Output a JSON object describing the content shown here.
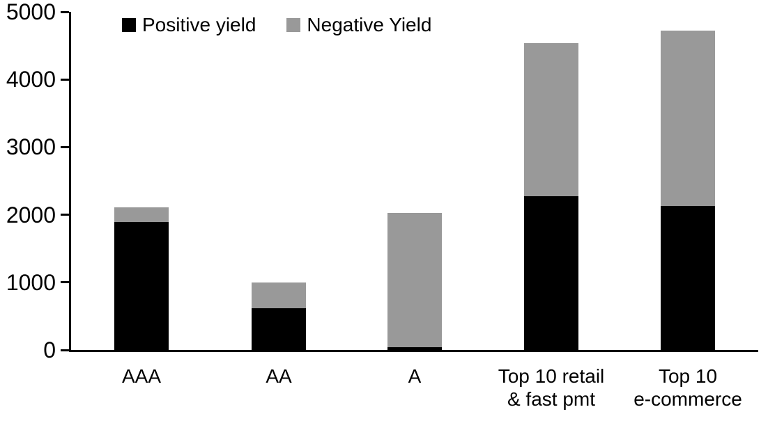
{
  "chart_data": {
    "type": "bar",
    "stacked": true,
    "title": "",
    "xlabel": "",
    "ylabel": "",
    "categories": [
      "AAA",
      "AA",
      "A",
      "Top 10 retail\n& fast pmt",
      "Top 10\ne-commerce"
    ],
    "series": [
      {
        "name": "Positive yield",
        "color": "#000000",
        "values": [
          1890,
          620,
          45,
          2270,
          2130
        ]
      },
      {
        "name": "Negative Yield",
        "color": "#999999",
        "values": [
          220,
          380,
          1985,
          2270,
          2590
        ]
      }
    ],
    "totals": [
      2110,
      1000,
      2030,
      4540,
      4720
    ],
    "ylim": [
      0,
      5000
    ],
    "ytick_interval": 1000,
    "ytick_labels": [
      "0",
      "1000",
      "2000",
      "3000",
      "4000",
      "5000"
    ],
    "legend_position": "top",
    "grid": false,
    "axis_color": "#000000",
    "background_color": "#ffffff"
  }
}
